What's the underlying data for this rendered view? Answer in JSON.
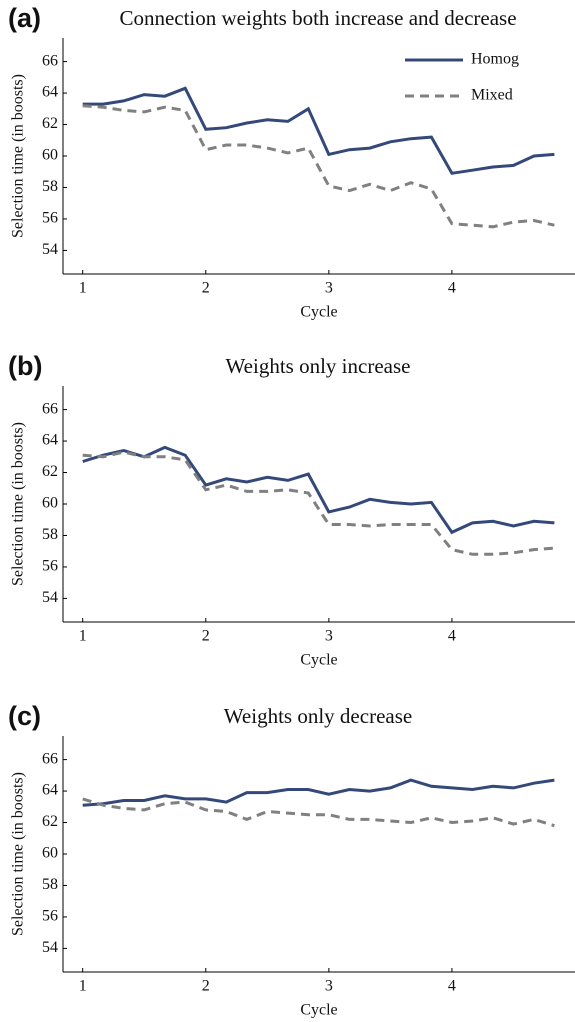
{
  "chart_data": [
    {
      "type": "line",
      "panel_label": "(a)",
      "title": "Connection weights both increase and decrease",
      "xlabel": "Cycle",
      "ylabel": "Selection time (in boosts)",
      "x": [
        1,
        1.167,
        1.333,
        1.5,
        1.667,
        1.833,
        2,
        2.167,
        2.333,
        2.5,
        2.667,
        2.833,
        3,
        3.167,
        3.333,
        3.5,
        3.667,
        3.833,
        4,
        4.167,
        4.333,
        4.5,
        4.667,
        4.833
      ],
      "series": [
        {
          "name": "Homog",
          "color": "#34497a",
          "dash": false,
          "values": [
            63.3,
            63.3,
            63.5,
            63.9,
            63.8,
            64.3,
            61.7,
            61.8,
            62.1,
            62.3,
            62.2,
            63.0,
            60.1,
            60.4,
            60.5,
            60.9,
            61.1,
            61.2,
            58.9,
            59.1,
            59.3,
            59.4,
            60.0,
            60.1
          ]
        },
        {
          "name": "Mixed",
          "color": "#808080",
          "dash": true,
          "values": [
            63.2,
            63.1,
            62.9,
            62.8,
            63.1,
            62.9,
            60.4,
            60.7,
            60.7,
            60.5,
            60.2,
            60.5,
            58.1,
            57.8,
            58.2,
            57.8,
            58.3,
            57.9,
            55.7,
            55.6,
            55.5,
            55.8,
            55.9,
            55.6
          ]
        }
      ],
      "xlim": [
        0.84,
        5.0
      ],
      "xticks": [
        1,
        2,
        3,
        4
      ],
      "ylim": [
        52.5,
        67.5
      ],
      "yticks": [
        54,
        56,
        58,
        60,
        62,
        64,
        66
      ],
      "legend": "upper right"
    },
    {
      "type": "line",
      "panel_label": "(b)",
      "title": "Weights only increase",
      "xlabel": "Cycle",
      "ylabel": "Selection time (in boosts)",
      "x": [
        1,
        1.167,
        1.333,
        1.5,
        1.667,
        1.833,
        2,
        2.167,
        2.333,
        2.5,
        2.667,
        2.833,
        3,
        3.167,
        3.333,
        3.5,
        3.667,
        3.833,
        4,
        4.167,
        4.333,
        4.5,
        4.667,
        4.833
      ],
      "series": [
        {
          "color": "#34497a",
          "dash": false,
          "values": [
            62.7,
            63.1,
            63.4,
            63.0,
            63.6,
            63.1,
            61.2,
            61.6,
            61.4,
            61.7,
            61.5,
            61.9,
            59.5,
            59.8,
            60.3,
            60.1,
            60.0,
            60.1,
            58.2,
            58.8,
            58.9,
            58.6,
            58.9,
            58.8
          ]
        },
        {
          "color": "#808080",
          "dash": true,
          "values": [
            63.1,
            63.0,
            63.3,
            63.0,
            63.0,
            62.8,
            60.9,
            61.2,
            60.8,
            60.8,
            60.9,
            60.7,
            58.7,
            58.7,
            58.6,
            58.7,
            58.7,
            58.7,
            57.1,
            56.8,
            56.8,
            56.9,
            57.1,
            57.2
          ]
        }
      ],
      "xlim": [
        0.84,
        5.0
      ],
      "xticks": [
        1,
        2,
        3,
        4
      ],
      "ylim": [
        52.5,
        67.5
      ],
      "yticks": [
        54,
        56,
        58,
        60,
        62,
        64,
        66
      ]
    },
    {
      "type": "line",
      "panel_label": "(c)",
      "title": "Weights only decrease",
      "xlabel": "Cycle",
      "ylabel": "Selection time (in boosts)",
      "x": [
        1,
        1.167,
        1.333,
        1.5,
        1.667,
        1.833,
        2,
        2.167,
        2.333,
        2.5,
        2.667,
        2.833,
        3,
        3.167,
        3.333,
        3.5,
        3.667,
        3.833,
        4,
        4.167,
        4.333,
        4.5,
        4.667,
        4.833
      ],
      "series": [
        {
          "color": "#34497a",
          "dash": false,
          "values": [
            63.1,
            63.2,
            63.4,
            63.4,
            63.7,
            63.5,
            63.5,
            63.3,
            63.9,
            63.9,
            64.1,
            64.1,
            63.8,
            64.1,
            64.0,
            64.2,
            64.7,
            64.3,
            64.2,
            64.1,
            64.3,
            64.2,
            64.5,
            64.7
          ]
        },
        {
          "color": "#808080",
          "dash": true,
          "values": [
            63.5,
            63.1,
            62.9,
            62.8,
            63.2,
            63.3,
            62.8,
            62.7,
            62.2,
            62.7,
            62.6,
            62.5,
            62.5,
            62.2,
            62.2,
            62.1,
            62.0,
            62.3,
            62.0,
            62.1,
            62.3,
            61.9,
            62.2,
            61.8
          ]
        }
      ],
      "xlim": [
        0.84,
        5.0
      ],
      "xticks": [
        1,
        2,
        3,
        4
      ],
      "ylim": [
        52.5,
        67.5
      ],
      "yticks": [
        54,
        56,
        58,
        60,
        62,
        64,
        66
      ]
    }
  ]
}
